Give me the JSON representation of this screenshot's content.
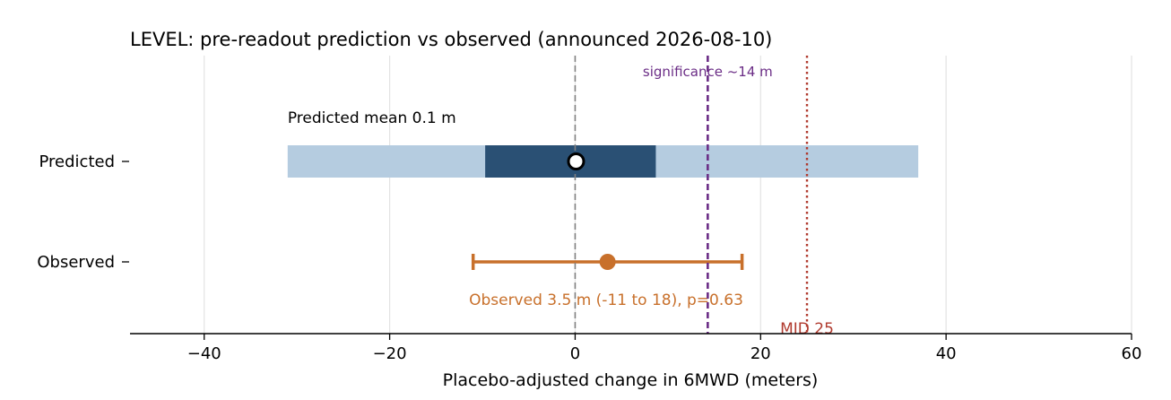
{
  "chart_data": {
    "type": "interval",
    "title": "LEVEL: pre-readout prediction vs observed (announced 2026-08-10)",
    "xlabel": "Placebo-adjusted change in 6MWD (meters)",
    "ylabel": "",
    "xlim": [
      -48,
      60
    ],
    "xticks": [
      -40,
      -20,
      0,
      20,
      40,
      60
    ],
    "grid": "x",
    "categories": [
      "Predicted",
      "Observed"
    ],
    "predicted": {
      "mean": 0.1,
      "outer_range": [
        -31,
        37
      ],
      "inner_range": [
        -9.7,
        8.7
      ],
      "label": "Predicted mean 0.1 m",
      "outer_color": "#b5cce0",
      "inner_color": "#2a5074"
    },
    "observed": {
      "estimate": 3.5,
      "ci": [
        -11,
        18
      ],
      "label": "Observed 3.5 m (-11 to 18), p=0.63",
      "color": "#c8702b"
    },
    "reference_lines": [
      {
        "x": 0,
        "style": "dashed",
        "color": "#808080",
        "label": ""
      },
      {
        "x": 14.3,
        "style": "dashed",
        "color": "#6b2d86",
        "label": "significance ~14 m"
      },
      {
        "x": 25,
        "style": "dotted",
        "color": "#b03a2e",
        "label": "MID 25"
      }
    ]
  }
}
